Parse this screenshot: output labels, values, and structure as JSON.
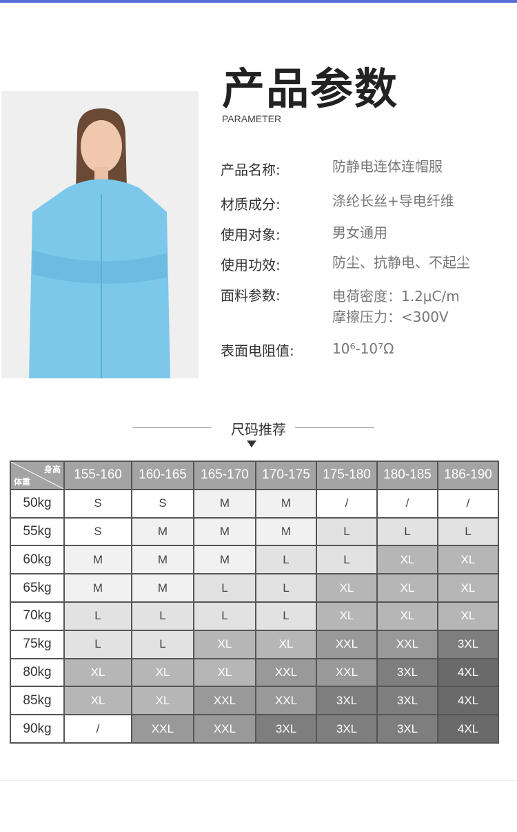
{
  "header": {
    "title": "产品参数",
    "subtitle": "PARAMETER"
  },
  "params": [
    {
      "label": "产品名称:",
      "value": "防静电连体连帽服"
    },
    {
      "label": "材质成分:",
      "value": "涤纶长丝+导电纤维"
    },
    {
      "label": "使用对象:",
      "value": "男女通用"
    },
    {
      "label": "使用功效:",
      "value": "防尘、抗静电、不起尘"
    },
    {
      "label": "面料参数:",
      "value": "电荷密度：1.2μC/m",
      "value2": "摩擦压力：<300V"
    },
    {
      "label": "表面电阻值:",
      "value": "10⁶-10⁷Ω"
    }
  ],
  "size_section": {
    "title": "尺码推荐"
  },
  "size_table": {
    "corner_height": "身高",
    "corner_weight": "体重",
    "heights": [
      "155-160",
      "160-165",
      "165-170",
      "170-175",
      "175-180",
      "180-185",
      "186-190"
    ],
    "rows": [
      {
        "weight": "50kg",
        "sizes": [
          "S",
          "S",
          "M",
          "M",
          "/",
          "/",
          "/"
        ]
      },
      {
        "weight": "55kg",
        "sizes": [
          "S",
          "M",
          "M",
          "M",
          "L",
          "L",
          "L"
        ]
      },
      {
        "weight": "60kg",
        "sizes": [
          "M",
          "M",
          "M",
          "L",
          "L",
          "XL",
          "XL"
        ]
      },
      {
        "weight": "65kg",
        "sizes": [
          "M",
          "M",
          "L",
          "L",
          "XL",
          "XL",
          "XL"
        ]
      },
      {
        "weight": "70kg",
        "sizes": [
          "L",
          "L",
          "L",
          "L",
          "XL",
          "XL",
          "XL"
        ]
      },
      {
        "weight": "75kg",
        "sizes": [
          "L",
          "L",
          "XL",
          "XL",
          "XXL",
          "XXL",
          "3XL"
        ]
      },
      {
        "weight": "80kg",
        "sizes": [
          "XL",
          "XL",
          "XL",
          "XXL",
          "XXL",
          "3XL",
          "4XL"
        ]
      },
      {
        "weight": "85kg",
        "sizes": [
          "XL",
          "XL",
          "XXL",
          "XXL",
          "3XL",
          "3XL",
          "4XL"
        ]
      },
      {
        "weight": "90kg",
        "sizes": [
          "/",
          "XXL",
          "XXL",
          "3XL",
          "3XL",
          "3XL",
          "4XL"
        ]
      }
    ]
  },
  "colors": {
    "garment": "#7cc8ea",
    "accent_bar": "#5a6fd6"
  }
}
